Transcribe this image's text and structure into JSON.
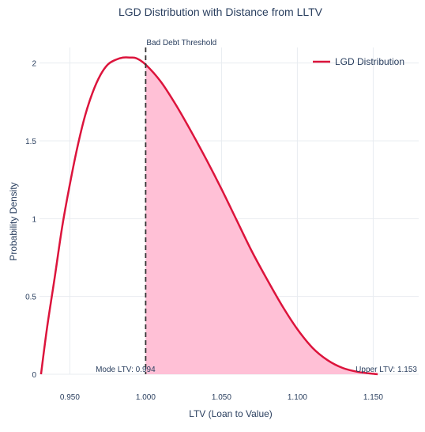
{
  "chart_data": {
    "type": "area",
    "title": "LGD Distribution with Distance from LLTV",
    "xlabel": "LTV (Loan to Value)",
    "ylabel": "Probability Density",
    "xlim": [
      0.93,
      1.18
    ],
    "ylim": [
      0,
      2.1
    ],
    "xticks": [
      0.95,
      1.0,
      1.05,
      1.1,
      1.15
    ],
    "xtick_labels": [
      "0.950",
      "1.000",
      "1.050",
      "1.100",
      "1.150"
    ],
    "yticks": [
      0,
      0.5,
      1,
      1.5,
      2
    ],
    "ytick_labels": [
      "0",
      "0.5",
      "1",
      "1.5",
      "2"
    ],
    "grid": true,
    "legend_position": "top-right",
    "series": [
      {
        "name": "LGD Distribution",
        "color": "#dc143c",
        "fill_color": "#ffc0d6",
        "fill_from_x": 1.0,
        "x": [
          0.931,
          0.935,
          0.94,
          0.945,
          0.95,
          0.955,
          0.96,
          0.965,
          0.97,
          0.975,
          0.98,
          0.985,
          0.99,
          0.994,
          1.0,
          1.01,
          1.02,
          1.03,
          1.04,
          1.05,
          1.06,
          1.07,
          1.08,
          1.09,
          1.1,
          1.11,
          1.12,
          1.13,
          1.14,
          1.15,
          1.153
        ],
        "y": [
          0.0,
          0.3,
          0.62,
          0.95,
          1.22,
          1.46,
          1.66,
          1.81,
          1.92,
          1.99,
          2.02,
          2.035,
          2.035,
          2.03,
          1.99,
          1.88,
          1.73,
          1.56,
          1.38,
          1.19,
          0.99,
          0.79,
          0.61,
          0.44,
          0.29,
          0.17,
          0.09,
          0.04,
          0.015,
          0.003,
          0.0
        ]
      }
    ],
    "annotations": [
      {
        "text": "Bad Debt Threshold",
        "x": 1.0
      },
      {
        "text": "Mode LTV: 0.994",
        "x": 0.994
      },
      {
        "text": "Upper LTV: 1.153",
        "x": 1.153
      }
    ],
    "threshold_line": {
      "x": 1.0,
      "style": "dashed",
      "color": "#333333"
    }
  }
}
